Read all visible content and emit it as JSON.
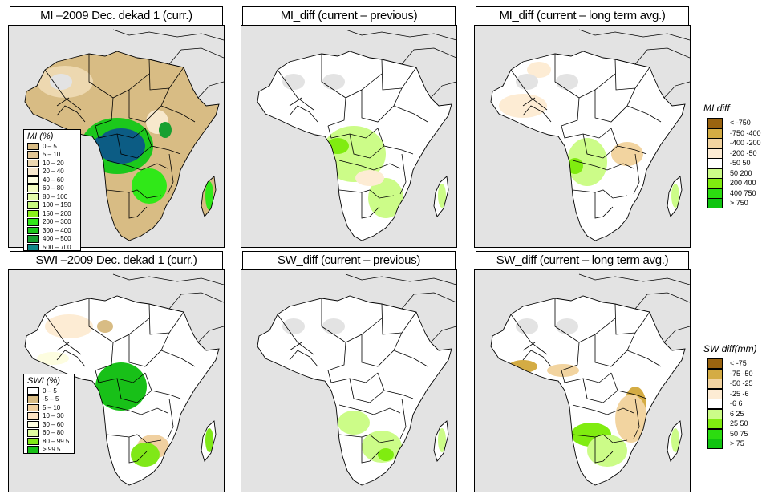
{
  "figure": {
    "panels": [
      {
        "id": "mi-current",
        "title": "MI –2009 Dec. dekad 1 (curr.)",
        "style": "mi"
      },
      {
        "id": "mi-diff-previous",
        "title": "MI_diff (current – previous)",
        "style": "midiff1"
      },
      {
        "id": "mi-diff-longterm",
        "title": "MI_diff (current – long term avg.)",
        "style": "midiff2"
      },
      {
        "id": "swi-current",
        "title": "SWI –2009 Dec. dekad 1 (curr.)",
        "style": "swi"
      },
      {
        "id": "sw-diff-previous",
        "title": "SW_diff (current – previous)",
        "style": "swdiff1"
      },
      {
        "id": "sw-diff-longterm",
        "title": "SW_diff (current – long term avg.)",
        "style": "swdiff2"
      }
    ]
  },
  "legends": {
    "mi": {
      "title": "MI (%)",
      "items": [
        {
          "label": "0 – 5",
          "color": "#d8bc84"
        },
        {
          "label": "5 – 10",
          "color": "#e2c796"
        },
        {
          "label": "10 – 20",
          "color": "#edd8b0"
        },
        {
          "label": "20 – 40",
          "color": "#f7e8cc"
        },
        {
          "label": "40 – 60",
          "color": "#fdfde0"
        },
        {
          "label": "60 – 80",
          "color": "#f3fcc0"
        },
        {
          "label": "80 – 100",
          "color": "#e3fba8"
        },
        {
          "label": "100 – 150",
          "color": "#c8f880"
        },
        {
          "label": "150 – 200",
          "color": "#8cf01c"
        },
        {
          "label": "200 – 300",
          "color": "#30e818"
        },
        {
          "label": "300 – 400",
          "color": "#1cc81c"
        },
        {
          "label": "400 – 500",
          "color": "#18a030"
        },
        {
          "label": "500 – 700",
          "color": "#108888"
        },
        {
          "label": "> 700",
          "color": "#0c5c84"
        }
      ]
    },
    "swi": {
      "title": "SWI (%)",
      "items": [
        {
          "label": "0 – 5",
          "color": "#ffffff"
        },
        {
          "label": "-5 – 5",
          "color": "#d8bc84"
        },
        {
          "label": "5 – 10",
          "color": "#f0d0a0"
        },
        {
          "label": "10 – 30",
          "color": "#fde4c4"
        },
        {
          "label": "30 – 60",
          "color": "#fdfde0"
        },
        {
          "label": "60 – 80",
          "color": "#e0fca0"
        },
        {
          "label": "80 – 99.5",
          "color": "#80e818"
        },
        {
          "label": "> 99.5",
          "color": "#18c018"
        }
      ]
    },
    "mi_diff": {
      "title": "MI diff",
      "items": [
        {
          "label": "< -750",
          "color": "#9a6410"
        },
        {
          "label": "-750 -400",
          "color": "#d4ac44"
        },
        {
          "label": "-400 -200",
          "color": "#f2d4a0"
        },
        {
          "label": "-200 -50",
          "color": "#fdecd4"
        },
        {
          "label": "-50 50",
          "color": "#ffffff"
        },
        {
          "label": "50 200",
          "color": "#ccfc88"
        },
        {
          "label": "200 400",
          "color": "#80ec10"
        },
        {
          "label": "400 750",
          "color": "#2cdc10"
        },
        {
          "label": "> 750",
          "color": "#10c410"
        }
      ]
    },
    "sw_diff": {
      "title": "SW diff(mm)",
      "items": [
        {
          "label": "< -75",
          "color": "#9a6410"
        },
        {
          "label": "-75 -50",
          "color": "#d4ac44"
        },
        {
          "label": "-50 -25",
          "color": "#f2d4a0"
        },
        {
          "label": "-25 -6",
          "color": "#fdecd4"
        },
        {
          "label": "-6 6",
          "color": "#ffffff"
        },
        {
          "label": "6 25",
          "color": "#ccfc88"
        },
        {
          "label": "25 50",
          "color": "#80ec10"
        },
        {
          "label": "50 75",
          "color": "#2cdc10"
        },
        {
          "label": "> 75",
          "color": "#10c410"
        }
      ]
    }
  },
  "map_colors": {
    "ocean": "#e3e3e3",
    "border": "#000000"
  }
}
